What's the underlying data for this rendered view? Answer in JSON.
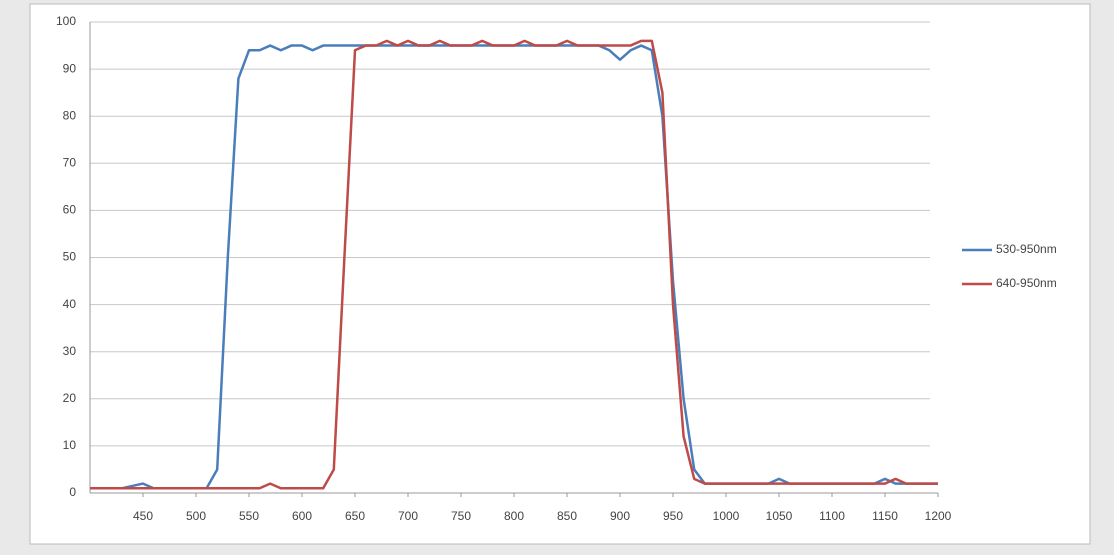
{
  "chart_data": {
    "type": "line",
    "x": [
      400,
      410,
      420,
      430,
      440,
      450,
      460,
      470,
      480,
      490,
      500,
      510,
      520,
      530,
      540,
      550,
      560,
      570,
      580,
      590,
      600,
      610,
      620,
      630,
      640,
      650,
      660,
      670,
      680,
      690,
      700,
      710,
      720,
      730,
      740,
      750,
      760,
      770,
      780,
      790,
      800,
      810,
      820,
      830,
      840,
      850,
      860,
      870,
      880,
      890,
      900,
      910,
      920,
      930,
      940,
      950,
      960,
      970,
      980,
      990,
      1000,
      1010,
      1020,
      1030,
      1040,
      1050,
      1060,
      1070,
      1080,
      1090,
      1100,
      1110,
      1120,
      1130,
      1140,
      1150,
      1160,
      1170,
      1180,
      1190,
      1200
    ],
    "series": [
      {
        "name": "530-950nm",
        "color": "#4a7ebb",
        "values": [
          1,
          1,
          1,
          1,
          1.5,
          2,
          1,
          1,
          1,
          1,
          1,
          1,
          5,
          50,
          88,
          94,
          94,
          95,
          94,
          95,
          95,
          94,
          95,
          95,
          95,
          95,
          95,
          95,
          95,
          95,
          95,
          95,
          95,
          95,
          95,
          95,
          95,
          95,
          95,
          95,
          95,
          95,
          95,
          95,
          95,
          95,
          95,
          95,
          95,
          94,
          92,
          94,
          95,
          94,
          80,
          45,
          20,
          5,
          2,
          2,
          2,
          2,
          2,
          2,
          2,
          3,
          2,
          2,
          2,
          2,
          2,
          2,
          2,
          2,
          2,
          3,
          2,
          2,
          2,
          2,
          2
        ]
      },
      {
        "name": "640-950nm",
        "color": "#be4b48",
        "values": [
          1,
          1,
          1,
          1,
          1,
          1,
          1,
          1,
          1,
          1,
          1,
          1,
          1,
          1,
          1,
          1,
          1,
          2,
          1,
          1,
          1,
          1,
          1,
          5,
          50,
          94,
          95,
          95,
          96,
          95,
          96,
          95,
          95,
          96,
          95,
          95,
          95,
          96,
          95,
          95,
          95,
          96,
          95,
          95,
          95,
          96,
          95,
          95,
          95,
          95,
          95,
          95,
          96,
          96,
          85,
          40,
          12,
          3,
          2,
          2,
          2,
          2,
          2,
          2,
          2,
          2,
          2,
          2,
          2,
          2,
          2,
          2,
          2,
          2,
          2,
          2,
          3,
          2,
          2,
          2,
          2
        ]
      }
    ],
    "xlim": [
      400,
      1200
    ],
    "xticks": [
      450,
      500,
      550,
      600,
      650,
      700,
      750,
      800,
      850,
      900,
      950,
      1000,
      1050,
      1100,
      1150,
      1200
    ],
    "ylim": [
      0,
      100
    ],
    "yticks": [
      0,
      10,
      20,
      30,
      40,
      50,
      60,
      70,
      80,
      90,
      100
    ],
    "grid": true,
    "legend": "right"
  }
}
